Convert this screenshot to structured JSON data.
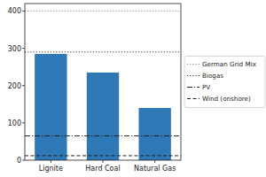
{
  "chart_data": {
    "type": "bar",
    "categories": [
      "Lignite",
      "Hard Coal",
      "Natural Gas"
    ],
    "values": [
      285,
      235,
      140
    ],
    "color": "#2f78b6",
    "ylim": [
      0,
      420
    ],
    "yticks": [
      0,
      100,
      200,
      300,
      400
    ],
    "reference_lines": [
      {
        "name": "German Grid Mix",
        "value": 400,
        "line_style": "dotted",
        "color": "#8c8c8c"
      },
      {
        "name": "Biogas",
        "value": 290,
        "line_style": "dotted",
        "color": "#333333"
      },
      {
        "name": "PV",
        "value": 65,
        "line_style": "dashdot",
        "color": "#222222"
      },
      {
        "name": "Wind (onshore)",
        "value": 12,
        "line_style": "dashed",
        "color": "#222222"
      }
    ],
    "legend": "right"
  }
}
